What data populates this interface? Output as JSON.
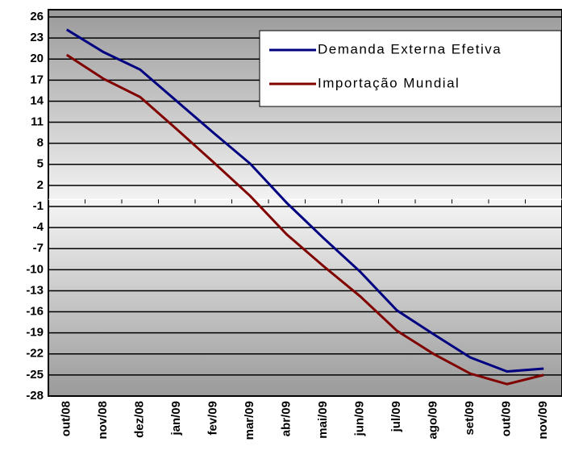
{
  "chart_data": {
    "type": "line",
    "categories": [
      "out/08",
      "nov/08",
      "dez/08",
      "jan/09",
      "fev/09",
      "mar/09",
      "abr/09",
      "mai/09",
      "jun/09",
      "jul/09",
      "ago/09",
      "set/09",
      "out/09",
      "nov/09"
    ],
    "series": [
      {
        "name": "Demanda Externa Efetiva",
        "color": "#000080",
        "values": [
          24.2,
          21,
          18.5,
          14,
          9.5,
          5.1,
          -0.5,
          -5.5,
          -10.3,
          -15.8,
          -19.2,
          -22.5,
          -24.5,
          -24.1
        ]
      },
      {
        "name": "Importação Mundial",
        "color": "#800000",
        "values": [
          20.6,
          17.2,
          14.6,
          10,
          5.3,
          0.5,
          -5,
          -9.5,
          -13.8,
          -18.7,
          -22,
          -24.8,
          -26.3,
          -25
        ]
      }
    ],
    "ylim": [
      -28,
      26
    ],
    "yticks": [
      26,
      23,
      20,
      17,
      14,
      11,
      8,
      5,
      2,
      -1,
      -4,
      -7,
      -10,
      -13,
      -16,
      -19,
      -22,
      -25,
      -28
    ],
    "grid": true,
    "legend": "top-right"
  }
}
